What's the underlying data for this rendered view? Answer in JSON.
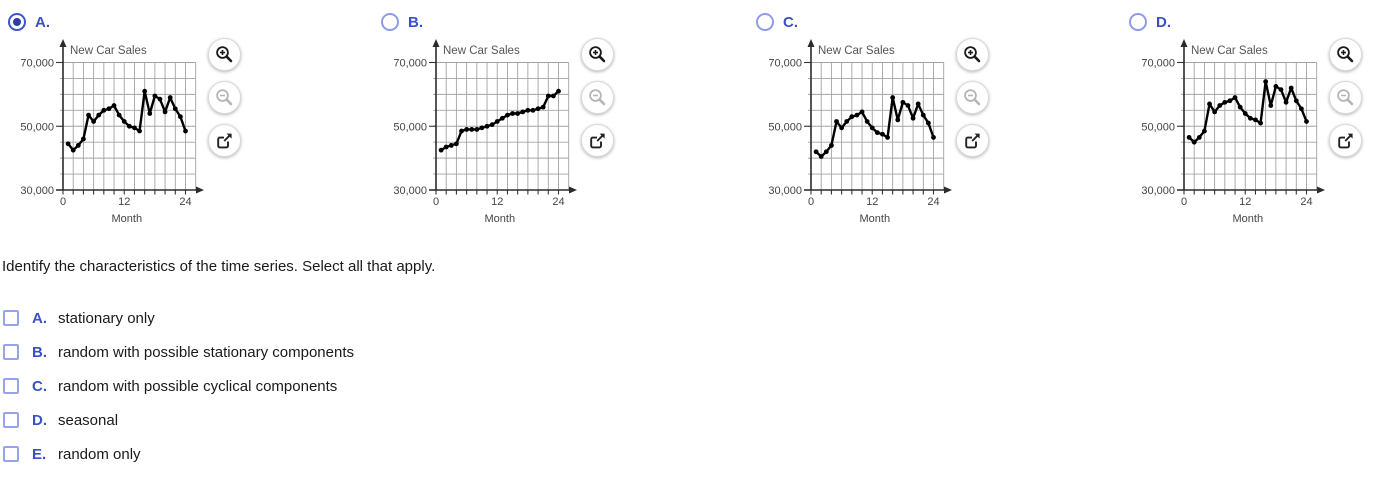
{
  "question": "Identify the characteristics of the time series. Select all that apply.",
  "options": [
    {
      "label": "A.",
      "selected": true
    },
    {
      "label": "B.",
      "selected": false
    },
    {
      "label": "C.",
      "selected": false
    },
    {
      "label": "D.",
      "selected": false
    }
  ],
  "chart_toolbar": {
    "zoom_in_icon": "magnifier-plus",
    "zoom_out_icon": "magnifier-minus",
    "open_external_icon": "arrow-out-of-box",
    "zoom_out_disabled": true
  },
  "choices": [
    {
      "letter": "A.",
      "text": "stationary only",
      "checked": false
    },
    {
      "letter": "B.",
      "text": "random with possible stationary components",
      "checked": false
    },
    {
      "letter": "C.",
      "text": "random with possible cyclical components",
      "checked": false
    },
    {
      "letter": "D.",
      "text": "seasonal",
      "checked": false
    },
    {
      "letter": "E.",
      "text": "random only",
      "checked": false
    }
  ],
  "colors": {
    "accent_blue": "#3b50c8",
    "radio_selected_dot": "#2e3d9f",
    "radio_unselected_border": "#8e9ce6",
    "checkbox_border": "#96a3e8",
    "series_line": "#000000",
    "grid": "#a3a3a3",
    "chart_title": "#555555"
  },
  "chart_data": [
    {
      "type": "line",
      "title": "New Car Sales",
      "xlabel": "Month",
      "xlim": [
        0,
        26
      ],
      "ylim": [
        30000,
        70000
      ],
      "x_tick_values": [
        0,
        12,
        24
      ],
      "y_tick_values": [
        70000,
        50000,
        30000
      ],
      "y_tick_labels": [
        "70,000",
        "50,000",
        "30,000"
      ],
      "x_minor_step": 2,
      "y_minor_step": 5000,
      "grid": true,
      "x": [
        1,
        2,
        3,
        4,
        5,
        6,
        7,
        8,
        9,
        10,
        11,
        12,
        13,
        14,
        15,
        16,
        17,
        18,
        19,
        20,
        21,
        22,
        23,
        24
      ],
      "values": [
        44500,
        42500,
        44000,
        46000,
        53500,
        51500,
        53500,
        55000,
        55500,
        56500,
        53500,
        51500,
        50000,
        49500,
        48500,
        61000,
        54000,
        59500,
        58500,
        54500,
        59000,
        55500,
        53000,
        48500
      ]
    },
    {
      "type": "line",
      "title": "New Car Sales",
      "xlabel": "Month",
      "xlim": [
        0,
        26
      ],
      "ylim": [
        30000,
        70000
      ],
      "x_tick_values": [
        0,
        12,
        24
      ],
      "y_tick_values": [
        70000,
        50000,
        30000
      ],
      "y_tick_labels": [
        "70,000",
        "50,000",
        "30,000"
      ],
      "x_minor_step": 2,
      "y_minor_step": 5000,
      "grid": true,
      "x": [
        1,
        2,
        3,
        4,
        5,
        6,
        7,
        8,
        9,
        10,
        11,
        12,
        13,
        14,
        15,
        16,
        17,
        18,
        19,
        20,
        21,
        22,
        23,
        24
      ],
      "values": [
        42500,
        43500,
        44000,
        44500,
        48500,
        49000,
        49000,
        49000,
        49500,
        50000,
        50500,
        51500,
        52500,
        53500,
        54000,
        54000,
        54500,
        55000,
        55000,
        55500,
        56000,
        59500,
        59500,
        61000
      ]
    },
    {
      "type": "line",
      "title": "New Car Sales",
      "xlabel": "Month",
      "xlim": [
        0,
        26
      ],
      "ylim": [
        30000,
        70000
      ],
      "x_tick_values": [
        0,
        12,
        24
      ],
      "y_tick_values": [
        70000,
        50000,
        30000
      ],
      "y_tick_labels": [
        "70,000",
        "50,000",
        "30,000"
      ],
      "x_minor_step": 2,
      "y_minor_step": 5000,
      "grid": true,
      "x": [
        1,
        2,
        3,
        4,
        5,
        6,
        7,
        8,
        9,
        10,
        11,
        12,
        13,
        14,
        15,
        16,
        17,
        18,
        19,
        20,
        21,
        22,
        23,
        24
      ],
      "values": [
        42000,
        40500,
        42000,
        44000,
        51500,
        49500,
        51500,
        53000,
        53500,
        54500,
        51500,
        49500,
        48000,
        47500,
        46500,
        59000,
        52000,
        57500,
        56500,
        52500,
        57000,
        53500,
        51000,
        46500
      ]
    },
    {
      "type": "line",
      "title": "New Car Sales",
      "xlabel": "Month",
      "xlim": [
        0,
        26
      ],
      "ylim": [
        30000,
        70000
      ],
      "x_tick_values": [
        0,
        12,
        24
      ],
      "y_tick_values": [
        70000,
        50000,
        30000
      ],
      "y_tick_labels": [
        "70,000",
        "50,000",
        "30,000"
      ],
      "x_minor_step": 2,
      "y_minor_step": 5000,
      "grid": true,
      "x": [
        1,
        2,
        3,
        4,
        5,
        6,
        7,
        8,
        9,
        10,
        11,
        12,
        13,
        14,
        15,
        16,
        17,
        18,
        19,
        20,
        21,
        22,
        23,
        24
      ],
      "values": [
        46500,
        45000,
        46500,
        48500,
        57000,
        54500,
        56500,
        57500,
        58000,
        59000,
        56000,
        54000,
        52500,
        52000,
        51000,
        64000,
        56500,
        62500,
        61500,
        57500,
        62000,
        58000,
        55500,
        51500
      ]
    }
  ]
}
